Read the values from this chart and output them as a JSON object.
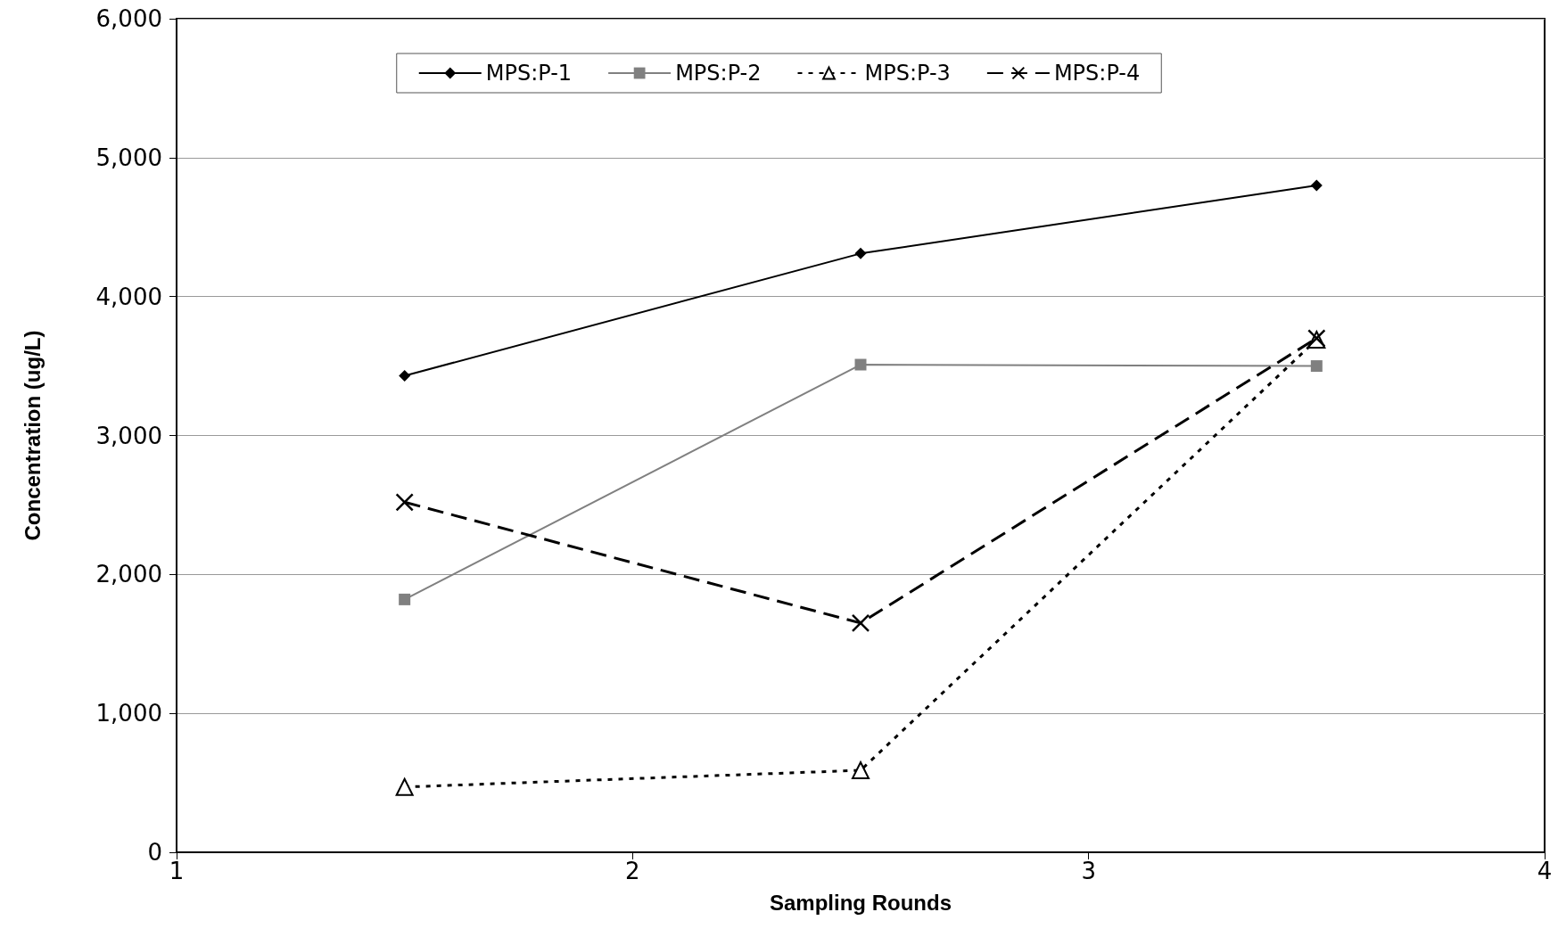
{
  "chart_data": {
    "type": "line",
    "xlabel": "Sampling Rounds",
    "ylabel": "Concentration (ug/L)",
    "x": [
      1.5,
      2.5,
      3.5
    ],
    "series": [
      {
        "name": "MPS:P-1",
        "color": "#000000",
        "marker": "diamond",
        "line_style": "solid",
        "values": [
          3430,
          4310,
          4800
        ]
      },
      {
        "name": "MPS:P-2",
        "color": "#808080",
        "marker": "square",
        "line_style": "solid",
        "values": [
          1820,
          3510,
          3500
        ]
      },
      {
        "name": "MPS:P-3",
        "color": "#000000",
        "marker": "triangle",
        "line_style": "dotted",
        "values": [
          470,
          590,
          3690
        ]
      },
      {
        "name": "MPS:P-4",
        "color": "#000000",
        "marker": "cross",
        "line_style": "dashed",
        "values": [
          2520,
          1650,
          3700
        ]
      }
    ],
    "xlim": [
      1,
      4
    ],
    "xticks": [
      1,
      2,
      3,
      4
    ],
    "ylim": [
      0,
      6000
    ],
    "yticks": [
      0,
      {
        "value": 1000,
        "label": "1,000"
      },
      {
        "value": 2000,
        "label": "2,000"
      },
      {
        "value": 3000,
        "label": "3,000"
      },
      {
        "value": 4000,
        "label": "4,000"
      },
      {
        "value": 5000,
        "label": "5,000"
      },
      {
        "value": 6000,
        "label": "6,000"
      }
    ],
    "grid": "y",
    "legend": "top"
  }
}
